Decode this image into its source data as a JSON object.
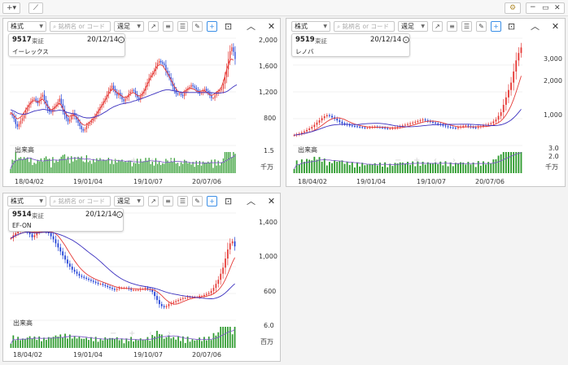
{
  "toolbar": {
    "add_label": "+▾",
    "chart_label": "⟋",
    "settings_icon": "gear"
  },
  "common": {
    "market_select": "株式",
    "search_placeholder": "銘柄名 or コード",
    "period_select": "週足",
    "volume_label": "出来高",
    "x_ticks": [
      "18/04/02",
      "19/01/04",
      "19/10/07",
      "20/07/06"
    ],
    "overlay_nav": [
      "−",
      "+",
      "‹",
      "›"
    ]
  },
  "colors": {
    "up": "#e53935",
    "down": "#1e3fd6",
    "ma_short": "#e53935",
    "ma_long": "#3a2fbf",
    "volume": "#2e9b2e",
    "accent": "#3a8ee6"
  },
  "panels": [
    {
      "code": "9517",
      "market": "東証",
      "date": "20/12/14",
      "name": "イーレックス",
      "y_ticks": [
        "2,000",
        "1,600",
        "1,200",
        "800"
      ],
      "vol_ticks": [
        "1.5"
      ],
      "vol_unit": "千万",
      "chart_data": {
        "type": "candlestick",
        "x_ticks": [
          "18/04/02",
          "19/01/04",
          "19/10/07",
          "20/07/06"
        ],
        "ylim": [
          450,
          2100
        ],
        "close": [
          940,
          910,
          860,
          780,
          740,
          780,
          830,
          870,
          920,
          980,
          1030,
          1080,
          1130,
          1160,
          1170,
          1140,
          1100,
          1140,
          1200,
          1230,
          1150,
          1080,
          1010,
          970,
          960,
          1010,
          1050,
          1080,
          1120,
          1170,
          1090,
          1000,
          920,
          870,
          820,
          850,
          900,
          950,
          900,
          850,
          800,
          750,
          700,
          680,
          700,
          750,
          780,
          800,
          830,
          860,
          900,
          940,
          990,
          1040,
          1080,
          1130,
          1170,
          1230,
          1290,
          1330,
          1370,
          1320,
          1270,
          1220,
          1260,
          1210,
          1160,
          1130,
          1170,
          1190,
          1250,
          1280,
          1300,
          1290,
          1240,
          1190,
          1160,
          1210,
          1250,
          1290,
          1360,
          1420,
          1490,
          1530,
          1560,
          1600,
          1670,
          1720,
          1750,
          1730,
          1710,
          1690,
          1600,
          1550,
          1500,
          1430,
          1360,
          1300,
          1250,
          1240,
          1250,
          1230,
          1210,
          1260,
          1300,
          1330,
          1350,
          1380,
          1360,
          1340,
          1310,
          1280,
          1250,
          1260,
          1290,
          1320,
          1290,
          1260,
          1220,
          1180,
          1180,
          1220,
          1250,
          1280,
          1300,
          1320,
          1400,
          1500,
          1620,
          1780,
          1900,
          1960,
          1890,
          1780
        ],
        "ma_short": [
          960,
          940,
          910,
          880,
          860,
          870,
          890,
          920,
          960,
          1000,
          1040,
          1080,
          1110,
          1130,
          1140,
          1130,
          1120,
          1130,
          1150,
          1160,
          1130,
          1090,
          1050,
          1020,
          1000,
          1010,
          1030,
          1050,
          1080,
          1100,
          1070,
          1020,
          970,
          930,
          900,
          900,
          910,
          920,
          910,
          890,
          860,
          820,
          790,
          770,
          760,
          770,
          790,
          810,
          840,
          870,
          900,
          940,
          980,
          1020,
          1060,
          1100,
          1140,
          1190,
          1240,
          1280,
          1320,
          1310,
          1290,
          1260,
          1250,
          1230,
          1210,
          1190,
          1190,
          1200,
          1220,
          1240,
          1260,
          1260,
          1240,
          1220,
          1210,
          1220,
          1240,
          1280,
          1330,
          1390,
          1440,
          1490,
          1530,
          1580,
          1630,
          1670,
          1690,
          1690,
          1680,
          1640,
          1600,
          1560,
          1510,
          1460,
          1410,
          1360,
          1320,
          1290,
          1270,
          1260,
          1270,
          1280,
          1300,
          1320,
          1330,
          1330,
          1320,
          1310,
          1290,
          1280,
          1280,
          1290,
          1300,
          1290,
          1270,
          1250,
          1230,
          1220,
          1230,
          1250,
          1270,
          1290,
          1310,
          1360,
          1430,
          1520,
          1620,
          1700,
          1760,
          1780,
          1760
        ],
        "ma_long": [
          1000,
          990,
          980,
          965,
          950,
          940,
          935,
          930,
          930,
          935,
          940,
          950,
          960,
          970,
          980,
          985,
          990,
          995,
          1000,
          1005,
          1005,
          1000,
          995,
          990,
          985,
          985,
          985,
          985,
          990,
          995,
          990,
          985,
          975,
          965,
          955,
          950,
          945,
          940,
          935,
          925,
          915,
          905,
          895,
          885,
          880,
          875,
          875,
          875,
          880,
          885,
          890,
          900,
          910,
          920,
          935,
          950,
          965,
          980,
          1000,
          1015,
          1030,
          1045,
          1055,
          1065,
          1075,
          1085,
          1090,
          1095,
          1100,
          1105,
          1110,
          1115,
          1125,
          1135,
          1140,
          1150,
          1155,
          1165,
          1175,
          1185,
          1195,
          1205,
          1215,
          1225,
          1235,
          1245,
          1255,
          1265,
          1275,
          1285,
          1295,
          1300,
          1305,
          1305,
          1305,
          1300,
          1295,
          1290,
          1285,
          1280,
          1275,
          1270,
          1265,
          1265,
          1265,
          1265,
          1265,
          1265,
          1265,
          1265,
          1265,
          1265,
          1265,
          1265,
          1265,
          1265,
          1265,
          1265,
          1265,
          1262,
          1260,
          1258,
          1256,
          1256,
          1258,
          1260,
          1265,
          1270,
          1280,
          1295,
          1315,
          1335,
          1355,
          1370,
          1385
        ]
      }
    },
    {
      "code": "9519",
      "market": "東証",
      "date": "20/12/14",
      "name": "レノバ",
      "y_ticks": [
        "3,000",
        "2,000",
        "1,000"
      ],
      "vol_ticks": [
        "3.0",
        "2.0"
      ],
      "vol_unit": "千万",
      "chart_data": {
        "type": "candlestick",
        "x_ticks": [
          "18/04/02",
          "19/01/04",
          "19/10/07",
          "20/07/06"
        ],
        "ylim": [
          500,
          3400
        ],
        "close": [
          780,
          800,
          820,
          850,
          880,
          920,
          960,
          1000,
          1060,
          1120,
          1180,
          1240,
          1290,
          1320,
          1300,
          1260,
          1220,
          1180,
          1140,
          1100,
          1080,
          1060,
          1040,
          1030,
          1020,
          1010,
          1000,
          990,
          980,
          980,
          990,
          1000,
          1010,
          1000,
          990,
          980,
          970,
          960,
          960,
          970,
          980,
          1000,
          1020,
          1040,
          1060,
          1080,
          1100,
          1120,
          1140,
          1160,
          1180,
          1200,
          1180,
          1160,
          1140,
          1120,
          1100,
          1080,
          1060,
          1040,
          1020,
          1000,
          990,
          980,
          970,
          990,
          1010,
          1030,
          1040,
          1020,
          1000,
          990,
          980,
          1000,
          1020,
          1040,
          1060,
          1080,
          1100,
          1150,
          1200,
          1300,
          1400,
          1600,
          1800,
          2000,
          2200,
          2500,
          2800,
          3000,
          3150
        ]
      }
    },
    {
      "code": "9514",
      "market": "東証",
      "date": "20/12/14",
      "name": "EF-ON",
      "y_ticks": [
        "1,400",
        "1,000",
        "600"
      ],
      "vol_ticks": [
        "6.0"
      ],
      "vol_unit": "百万",
      "chart_data": {
        "type": "candlestick",
        "x_ticks": [
          "18/04/02",
          "19/01/04",
          "19/10/07",
          "20/07/06"
        ],
        "ylim": [
          420,
          1480
        ],
        "close": [
          1230,
          1260,
          1280,
          1300,
          1310,
          1320,
          1330,
          1300,
          1270,
          1240,
          1260,
          1290,
          1310,
          1330,
          1320,
          1300,
          1280,
          1250,
          1220,
          1180,
          1140,
          1100,
          1060,
          1020,
          980,
          950,
          920,
          900,
          880,
          860,
          850,
          840,
          830,
          820,
          810,
          800,
          790,
          780,
          780,
          770,
          760,
          750,
          740,
          730,
          720,
          730,
          740,
          740,
          740,
          740,
          730,
          720,
          720,
          720,
          720,
          730,
          730,
          740,
          730,
          720,
          700,
          660,
          620,
          580,
          560,
          550,
          560,
          580,
          590,
          600,
          610,
          620,
          630,
          640,
          640,
          650,
          650,
          650,
          650,
          650,
          660,
          660,
          670,
          680,
          690,
          710,
          740,
          780,
          820,
          880,
          940,
          1030,
          1120,
          1180,
          1200,
          1150
        ]
      }
    }
  ]
}
